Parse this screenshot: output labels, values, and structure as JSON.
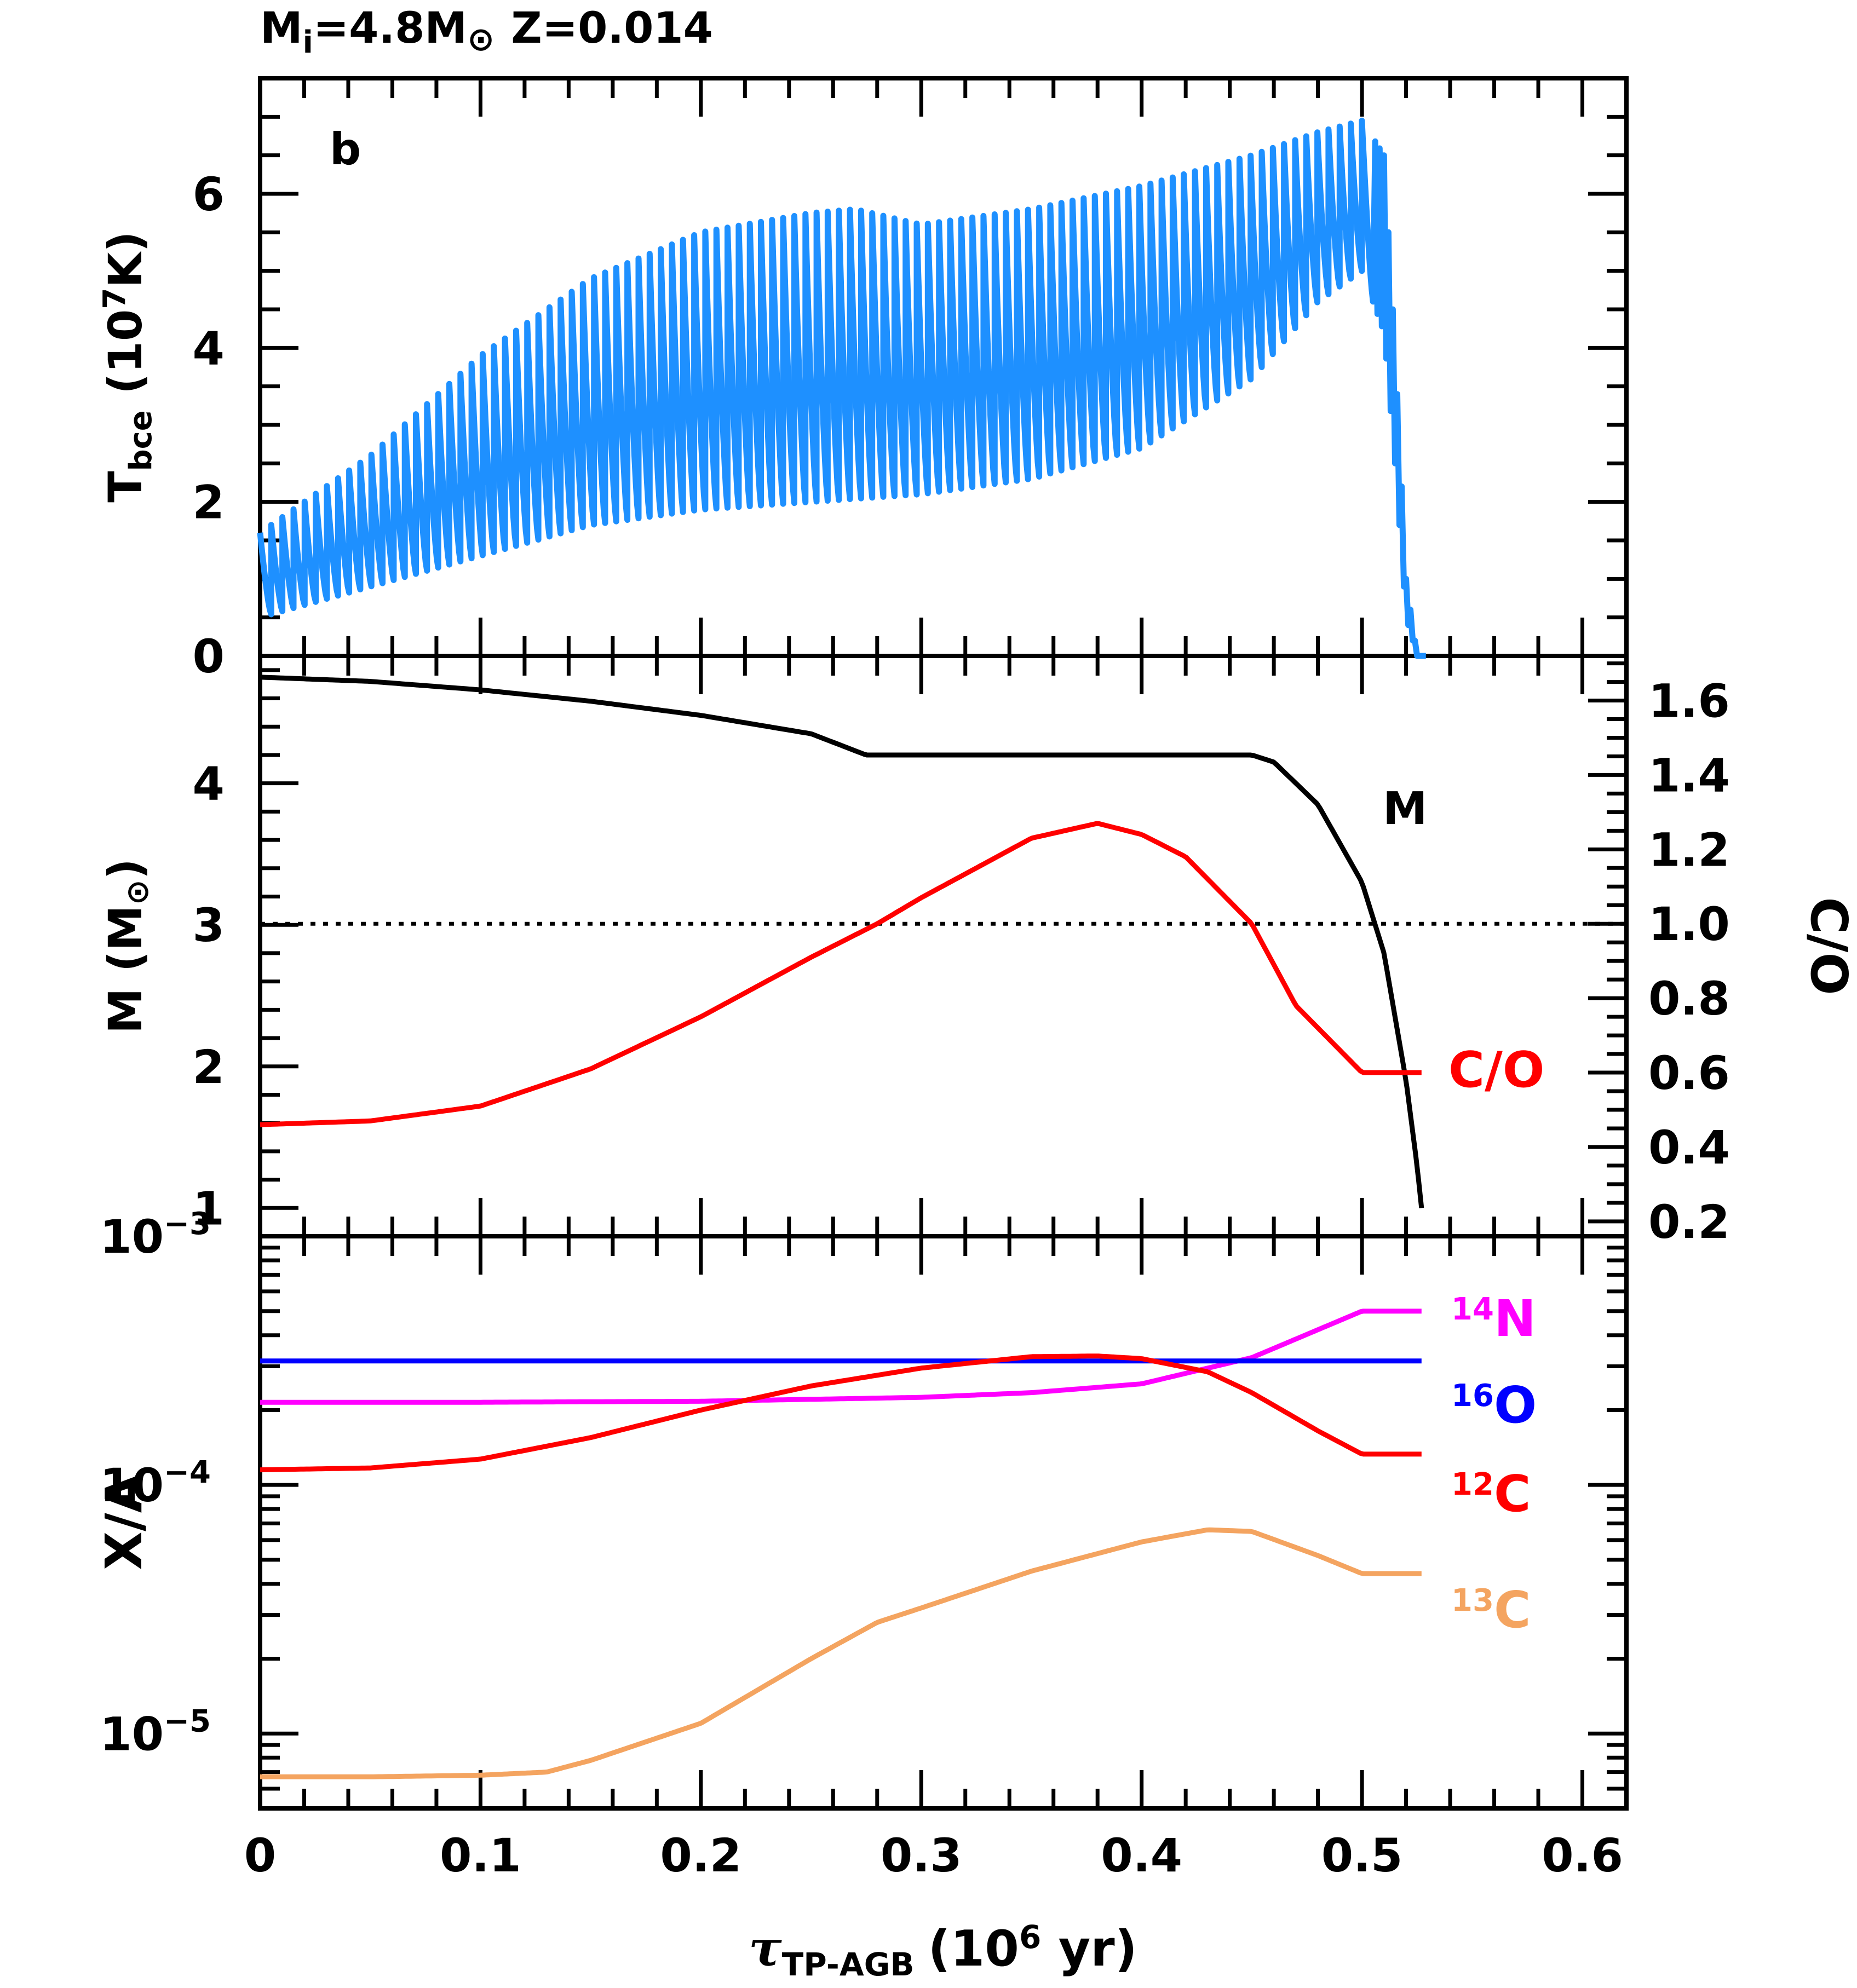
{
  "chart_data": {
    "type": "line",
    "title": "M_i=4.8M_⊙ Z=0.014",
    "title_parts": {
      "m": "M",
      "sub": "i",
      "eq": "=4.8M",
      "z": "Z=0.014"
    },
    "x_axis": {
      "label_tau": "τ",
      "label_sub": "TP-AGB",
      "label_rest": "(10",
      "label_sup": "6",
      "label_end": " yr)",
      "xlim": [
        0,
        0.62
      ],
      "ticks": [
        0,
        0.1,
        0.2,
        0.3,
        0.4,
        0.5,
        0.6
      ],
      "tick_labels": [
        "0",
        "0.1",
        "0.2",
        "0.3",
        "0.4",
        "0.5",
        "0.6"
      ]
    },
    "panels": [
      {
        "id": "top",
        "panel_label": "b",
        "ylabel": {
          "t": "T",
          "sub": "bce",
          "rest": " (10",
          "sup": "7",
          "end": "K)"
        },
        "ylim": [
          0,
          7.5
        ],
        "yticks": [
          0,
          2,
          4,
          6
        ],
        "ytick_labels": [
          "0",
          "2",
          "4",
          "6"
        ],
        "series": [
          {
            "name": "T_bce",
            "color": "#1e90ff",
            "pulses": 100,
            "max_envelope": {
              "x": [
                0,
                0.05,
                0.1,
                0.15,
                0.2,
                0.25,
                0.27,
                0.3,
                0.35,
                0.4,
                0.45,
                0.48,
                0.5,
                0.51,
                0.515,
                0.52,
                0.525
              ],
              "y": [
                1.6,
                2.6,
                3.9,
                4.9,
                5.5,
                5.75,
                5.8,
                5.6,
                5.8,
                6.1,
                6.5,
                6.8,
                6.95,
                6.5,
                4.0,
                1.0,
                0.0
              ]
            },
            "min_envelope": {
              "x": [
                0,
                0.05,
                0.1,
                0.15,
                0.2,
                0.25,
                0.3,
                0.35,
                0.4,
                0.45,
                0.48,
                0.5,
                0.51,
                0.515,
                0.52,
                0.525
              ],
              "y": [
                0.5,
                0.9,
                1.3,
                1.7,
                1.9,
                2.0,
                2.1,
                2.3,
                2.7,
                3.6,
                4.6,
                5.0,
                4.2,
                2.5,
                0.5,
                0.0
              ]
            }
          }
        ]
      },
      {
        "id": "middle",
        "ylabel_left": {
          "m": "M",
          "rest": " (M",
          "end": ")"
        },
        "ylabel_right": "C/O",
        "ylim_left": [
          0.8,
          4.9
        ],
        "yticks_left": [
          1,
          2,
          3,
          4
        ],
        "ytick_labels_left": [
          "1",
          "2",
          "3",
          "4"
        ],
        "ylim_right": [
          0.16,
          1.72
        ],
        "yticks_right": [
          0.2,
          0.4,
          0.6,
          0.8,
          1.0,
          1.2,
          1.4,
          1.6
        ],
        "ytick_labels_right": [
          "0.2",
          "0.4",
          "0.6",
          "0.8",
          "1.0",
          "1.2",
          "1.4",
          "1.6"
        ],
        "reference_line": {
          "axis": "right",
          "value": 1.0,
          "style": "dotted"
        },
        "series": [
          {
            "name": "M",
            "label": "M",
            "color": "#000000",
            "axis": "left",
            "x": [
              0,
              0.05,
              0.1,
              0.15,
              0.2,
              0.25,
              0.275,
              0.3,
              0.35,
              0.4,
              0.45,
              0.46,
              0.48,
              0.5,
              0.51,
              0.52,
              0.525,
              0.527
            ],
            "y": [
              4.75,
              4.72,
              4.66,
              4.58,
              4.48,
              4.35,
              4.2,
              4.2,
              4.2,
              4.2,
              4.2,
              4.15,
              3.85,
              3.3,
              2.8,
              1.9,
              1.3,
              1.0
            ]
          },
          {
            "name": "C/O",
            "label": "C/O",
            "color": "#ff0000",
            "axis": "right",
            "x": [
              0,
              0.05,
              0.1,
              0.15,
              0.2,
              0.25,
              0.28,
              0.3,
              0.35,
              0.38,
              0.4,
              0.42,
              0.45,
              0.47,
              0.5,
              0.52,
              0.527
            ],
            "y": [
              0.46,
              0.47,
              0.51,
              0.61,
              0.75,
              0.91,
              1.0,
              1.07,
              1.23,
              1.27,
              1.24,
              1.18,
              1.0,
              0.78,
              0.6,
              0.6,
              0.6
            ]
          }
        ]
      },
      {
        "id": "bottom",
        "ylabel": "X/A",
        "yscale": "log",
        "ylim": [
          5e-06,
          0.001
        ],
        "yticks": [
          1e-05,
          0.0001,
          0.001
        ],
        "ytick_labels": [
          {
            "base": "10",
            "exp": "−5"
          },
          {
            "base": "10",
            "exp": "−4"
          },
          {
            "base": "10",
            "exp": "−3"
          }
        ],
        "series": [
          {
            "name": "14N",
            "label_sup": "14",
            "label_el": "N",
            "color": "#ff00ff",
            "x": [
              0,
              0.1,
              0.2,
              0.3,
              0.35,
              0.4,
              0.45,
              0.5,
              0.527
            ],
            "y": [
              0.000215,
              0.000215,
              0.000217,
              0.000225,
              0.000235,
              0.000255,
              0.000325,
              0.0005,
              0.0005
            ]
          },
          {
            "name": "16O",
            "label_sup": "16",
            "label_el": "O",
            "color": "#0000ff",
            "x": [
              0,
              0.527
            ],
            "y": [
              0.000315,
              0.000315
            ]
          },
          {
            "name": "12C",
            "label_sup": "12",
            "label_el": "C",
            "color": "#ff0000",
            "x": [
              0,
              0.05,
              0.1,
              0.15,
              0.2,
              0.25,
              0.3,
              0.35,
              0.38,
              0.4,
              0.43,
              0.45,
              0.48,
              0.5,
              0.527
            ],
            "y": [
              0.000115,
              0.000117,
              0.000127,
              0.000155,
              0.0002,
              0.00025,
              0.000295,
              0.000328,
              0.00033,
              0.000322,
              0.000285,
              0.000235,
              0.000165,
              0.000133,
              0.000133
            ]
          },
          {
            "name": "13C",
            "label_sup": "13",
            "label_el": "C",
            "color": "#f4a460",
            "x": [
              0,
              0.05,
              0.1,
              0.13,
              0.15,
              0.2,
              0.25,
              0.28,
              0.3,
              0.35,
              0.4,
              0.43,
              0.45,
              0.48,
              0.5,
              0.527
            ],
            "y": [
              6.7e-06,
              6.7e-06,
              6.8e-06,
              7e-06,
              7.8e-06,
              1.1e-05,
              2e-05,
              2.8e-05,
              3.2e-05,
              4.5e-05,
              5.9e-05,
              6.6e-05,
              6.5e-05,
              5.2e-05,
              4.4e-05,
              4.4e-05
            ]
          }
        ]
      }
    ]
  }
}
